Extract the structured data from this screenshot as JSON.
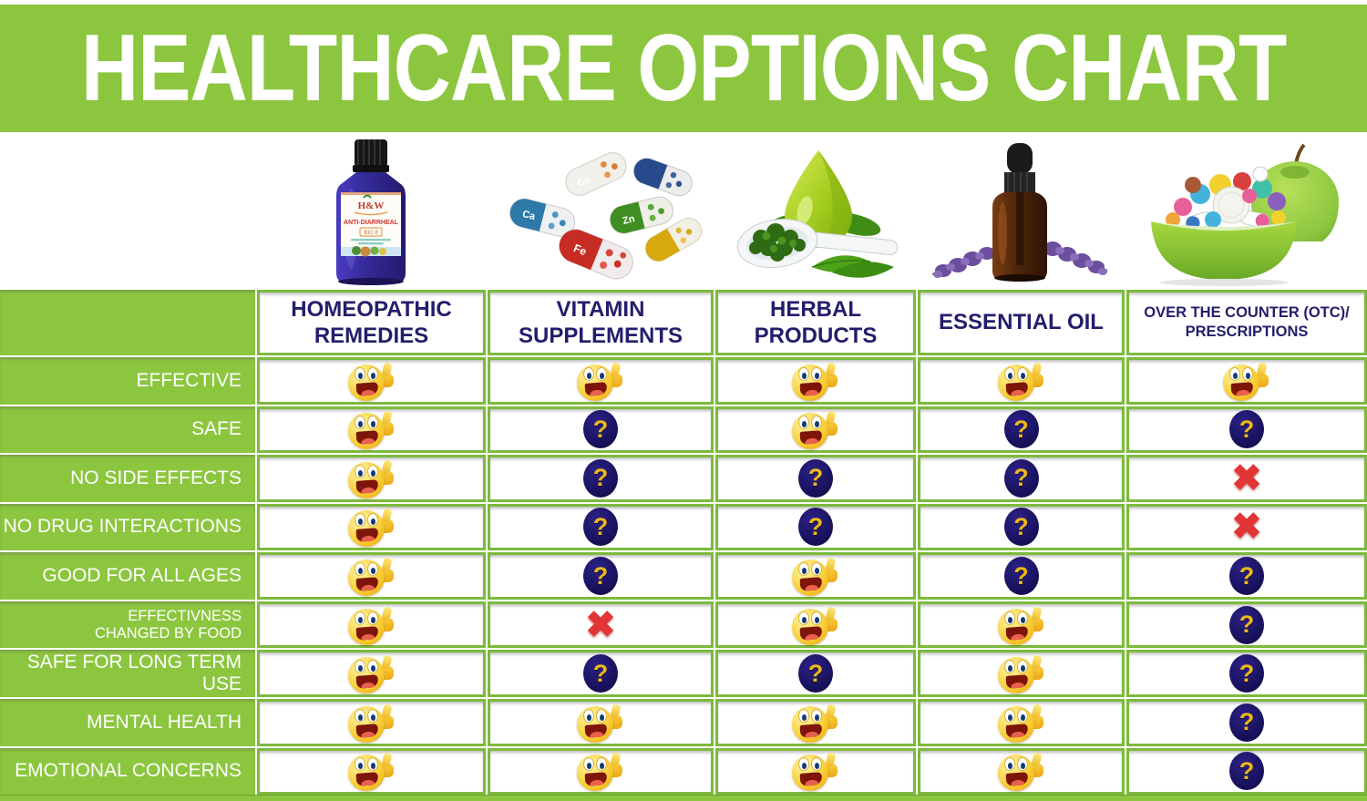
{
  "banner": {
    "title": "HEALTHCARE OPTIONS CHART"
  },
  "colors": {
    "green": "#8CC63F",
    "border_green": "#7CBA3B",
    "navy_text": "#231E6B",
    "question_circle": "#1B1464",
    "question_gold": "#ECB71C",
    "cross_red": "#E23535"
  },
  "icons": {
    "smiley": "thumbs-up-smiley-icon",
    "question": "question-mark-icon",
    "cross": "red-x-icon",
    "question_glyph": "?",
    "cross_glyph": "✖"
  },
  "products": {
    "homeopathic": {
      "image": "homeopathic-bottle",
      "brand": "H&W",
      "name": "ANTI-DIARRHEAL",
      "code": "BIO 8"
    },
    "vitamin": {
      "image": "vitamin-capsules",
      "letters": [
        "Ca",
        "Zn",
        "Fe"
      ]
    },
    "herbal": {
      "image": "herbal-drop-leaves-spoon"
    },
    "essential_oil": {
      "image": "essential-oil-dropper-bottle-lavender"
    },
    "otc": {
      "image": "apple-bowl-of-pills"
    }
  },
  "chart_data": {
    "type": "table",
    "title": "HEALTHCARE OPTIONS CHART",
    "columns": [
      "HOMEOPATHIC REMEDIES",
      "VITAMIN SUPPLEMENTS",
      "HERBAL PRODUCTS",
      "ESSENTIAL OIL",
      "OVER THE COUNTER (OTC)/ PRESCRIPTIONS"
    ],
    "row_labels": [
      "EFFECTIVE",
      "SAFE",
      "NO SIDE EFFECTS",
      "NO DRUG INTERACTIONS",
      "GOOD FOR ALL AGES",
      "EFFECTIVNESS CHANGED BY FOOD",
      "SAFE FOR LONG TERM USE",
      "MENTAL HEALTH",
      "EMOTIONAL CONCERNS"
    ],
    "cell_legend": {
      "smiley": "positive (thumbs-up smiley)",
      "question": "uncertain (question mark)",
      "cross": "negative (red x)"
    },
    "values": [
      [
        "smiley",
        "smiley",
        "smiley",
        "smiley",
        "smiley"
      ],
      [
        "smiley",
        "question",
        "smiley",
        "question",
        "question"
      ],
      [
        "smiley",
        "question",
        "question",
        "question",
        "cross"
      ],
      [
        "smiley",
        "question",
        "question",
        "question",
        "cross"
      ],
      [
        "smiley",
        "question",
        "smiley",
        "question",
        "question"
      ],
      [
        "smiley",
        "cross",
        "smiley",
        "smiley",
        "question"
      ],
      [
        "smiley",
        "question",
        "question",
        "smiley",
        "question"
      ],
      [
        "smiley",
        "smiley",
        "smiley",
        "smiley",
        "question"
      ],
      [
        "smiley",
        "smiley",
        "smiley",
        "smiley",
        "question"
      ]
    ]
  },
  "table": {
    "columns": [
      {
        "label": "HOMEOPATHIC REMEDIES"
      },
      {
        "label": "VITAMIN SUPPLEMENTS"
      },
      {
        "label": "HERBAL PRODUCTS"
      },
      {
        "label": "ESSENTIAL OIL"
      },
      {
        "label": "OVER THE COUNTER (OTC)/ PRESCRIPTIONS"
      }
    ],
    "rows": [
      {
        "label": "EFFECTIVE",
        "cells": [
          "smiley",
          "smiley",
          "smiley",
          "smiley",
          "smiley"
        ]
      },
      {
        "label": "SAFE",
        "cells": [
          "smiley",
          "question",
          "smiley",
          "question",
          "question"
        ]
      },
      {
        "label": "NO SIDE EFFECTS",
        "cells": [
          "smiley",
          "question",
          "question",
          "question",
          "cross"
        ]
      },
      {
        "label": "NO DRUG INTERACTIONS",
        "cells": [
          "smiley",
          "question",
          "question",
          "question",
          "cross"
        ]
      },
      {
        "label": "GOOD FOR ALL AGES",
        "cells": [
          "smiley",
          "question",
          "smiley",
          "question",
          "question"
        ]
      },
      {
        "label": "EFFECTIVNESS\nCHANGED BY FOOD",
        "small": true,
        "cells": [
          "smiley",
          "cross",
          "smiley",
          "smiley",
          "question"
        ]
      },
      {
        "label": "SAFE FOR LONG TERM USE",
        "cells": [
          "smiley",
          "question",
          "question",
          "smiley",
          "question"
        ]
      },
      {
        "label": "MENTAL HEALTH",
        "cells": [
          "smiley",
          "smiley",
          "smiley",
          "smiley",
          "question"
        ]
      },
      {
        "label": "EMOTIONAL CONCERNS",
        "cells": [
          "smiley",
          "smiley",
          "smiley",
          "smiley",
          "question"
        ]
      }
    ]
  }
}
